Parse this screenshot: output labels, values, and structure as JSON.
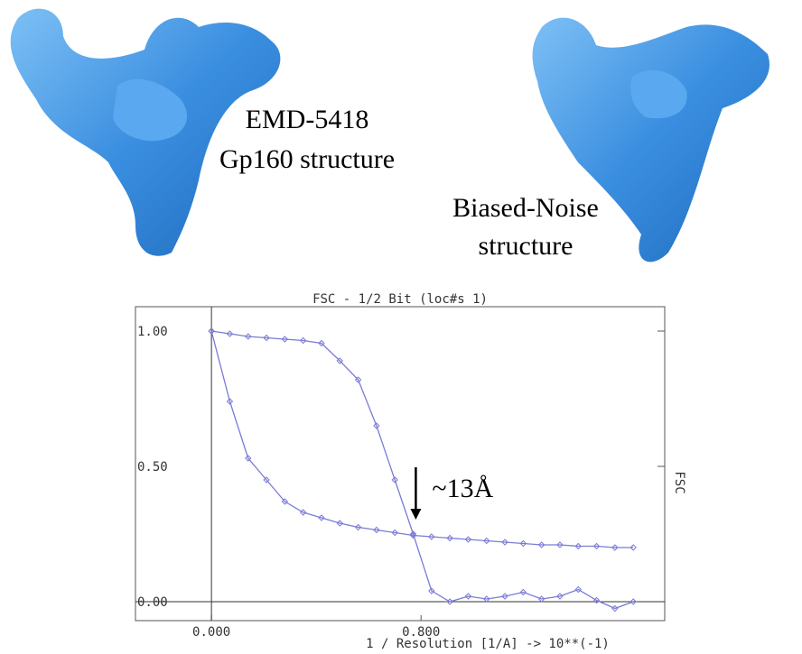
{
  "labels": {
    "left": [
      "EMD-5418",
      "Gp160 structure"
    ],
    "right": [
      "Biased-Noise",
      "structure"
    ]
  },
  "chart_data": {
    "type": "line",
    "title": "FSC - 1/2 Bit (loc#s 1)",
    "x_label": "1 / Resolution [1/A]    -> 10**(-1)",
    "y_label": "FSC",
    "annotation": "~13Å",
    "annotation_x": 0.78,
    "x": [
      0,
      0.07,
      0.14,
      0.21,
      0.28,
      0.35,
      0.42,
      0.49,
      0.56,
      0.63,
      0.7,
      0.77,
      0.84,
      0.91,
      0.98,
      1.05,
      1.12,
      1.19,
      1.26,
      1.33,
      1.4,
      1.47,
      1.54,
      1.61
    ],
    "series": [
      {
        "color": "#7b7bd6",
        "values": [
          1.0,
          0.99,
          0.98,
          0.975,
          0.97,
          0.965,
          0.955,
          0.89,
          0.82,
          0.65,
          0.45,
          0.25,
          0.04,
          0.0,
          0.02,
          0.01,
          0.02,
          0.035,
          0.01,
          0.02,
          0.045,
          0.005,
          -0.025,
          0.0
        ]
      },
      {
        "color": "#7b7bd6",
        "values": [
          1.0,
          0.74,
          0.53,
          0.45,
          0.37,
          0.33,
          0.31,
          0.29,
          0.275,
          0.265,
          0.255,
          0.245,
          0.24,
          0.235,
          0.23,
          0.225,
          0.22,
          0.215,
          0.21,
          0.21,
          0.205,
          0.205,
          0.2,
          0.2
        ]
      }
    ],
    "xlim": [
      -0.29,
      1.73
    ],
    "ylim": [
      -0.07,
      1.09
    ],
    "xticks": [
      {
        "value": 0,
        "label": "0.000"
      },
      {
        "value": 0.8,
        "label": "0.800"
      }
    ],
    "yticks": [
      {
        "value": 0,
        "label": "0.00"
      },
      {
        "value": 0.5,
        "label": "0.50"
      },
      {
        "value": 1,
        "label": "1.00"
      }
    ]
  }
}
